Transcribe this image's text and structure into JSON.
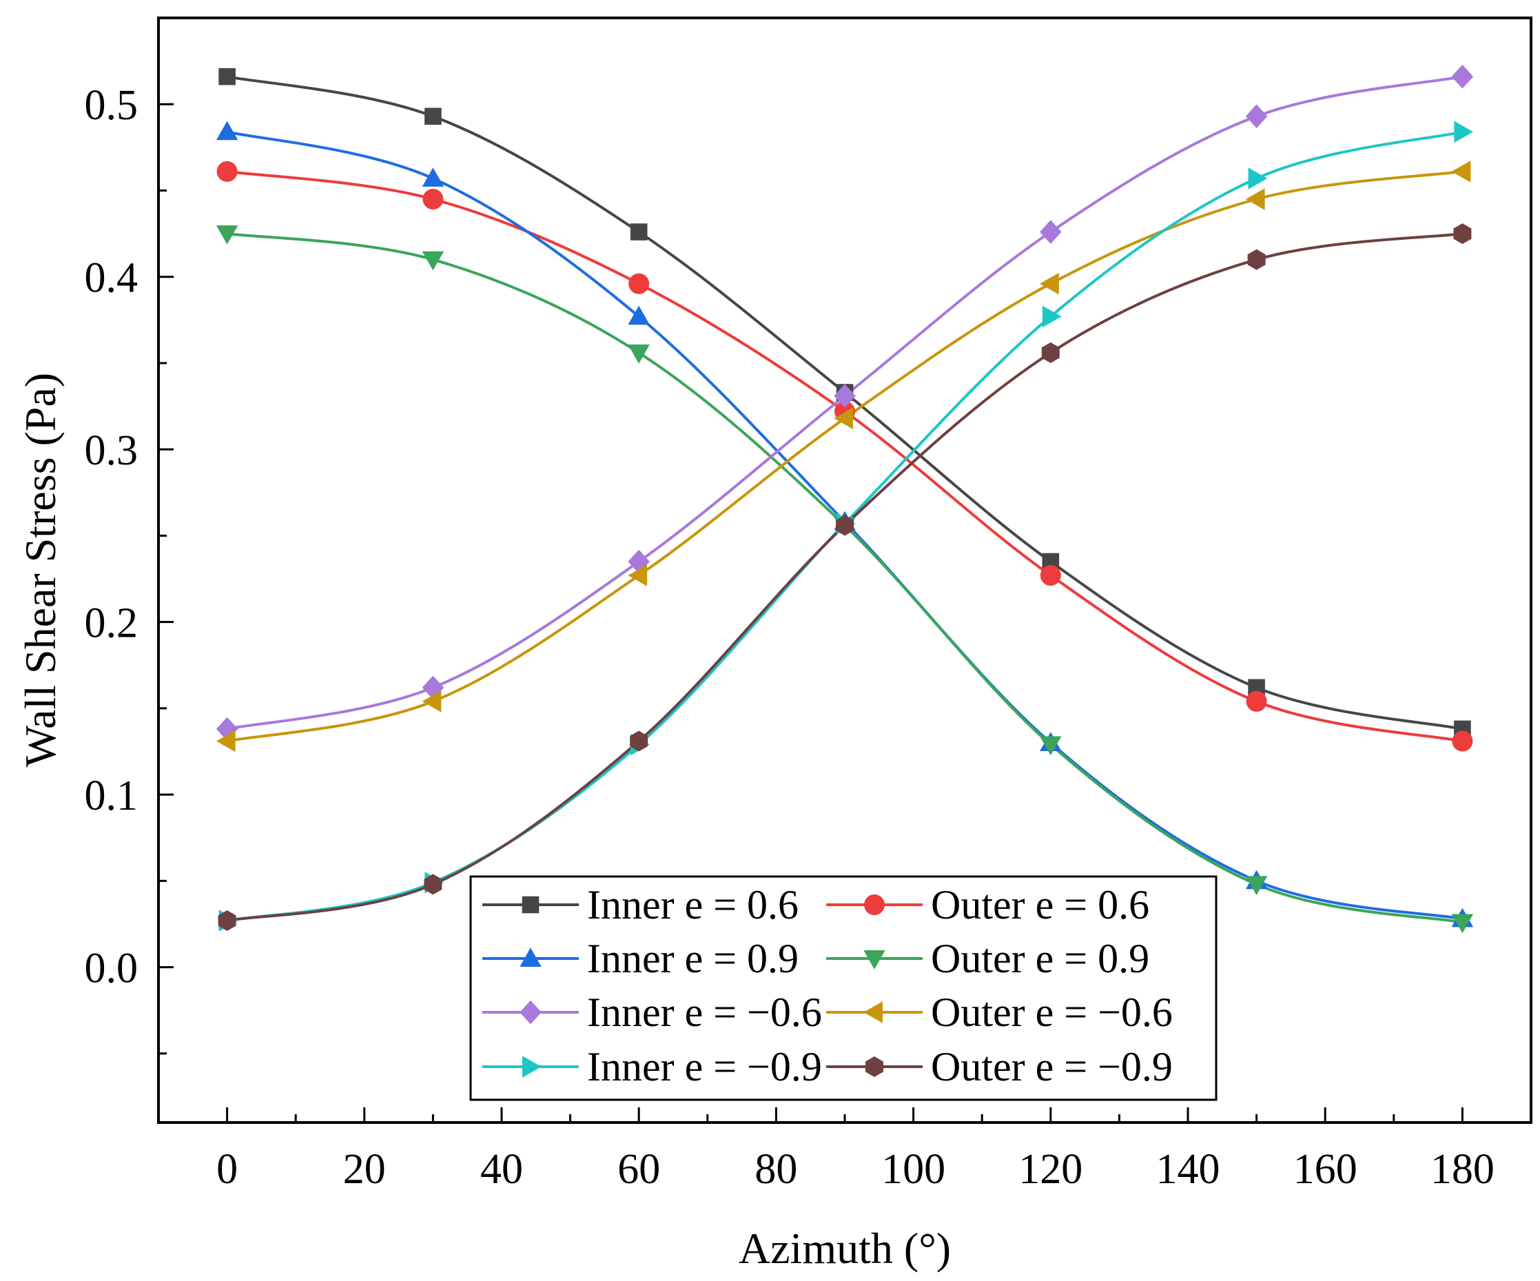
{
  "chart_data": {
    "type": "line",
    "title": "",
    "xlabel": "Azimuth (°)",
    "ylabel": "Wall Shear Stress (Pa)",
    "xlim": [
      -10,
      190
    ],
    "ylim": [
      -0.09,
      0.55
    ],
    "xticks": [
      0,
      20,
      40,
      60,
      80,
      100,
      120,
      140,
      160,
      180
    ],
    "xtick_labels": [
      "0",
      "20",
      "40",
      "60",
      "80",
      "100",
      "120",
      "140",
      "160",
      "180"
    ],
    "yticks": [
      0.0,
      0.1,
      0.2,
      0.3,
      0.4,
      0.5
    ],
    "ytick_labels": [
      "0.0",
      "0.1",
      "0.2",
      "0.3",
      "0.4",
      "0.5"
    ],
    "x": [
      0,
      30,
      60,
      90,
      120,
      150,
      180
    ],
    "grid": false,
    "legend_position": "bottom-center",
    "series": [
      {
        "name": "Inner e = 0.6",
        "color": "#464646",
        "marker": "square",
        "values": [
          0.516,
          0.493,
          0.426,
          0.333,
          0.235,
          0.162,
          0.138
        ]
      },
      {
        "name": "Outer e = 0.6",
        "color": "#ee3b3b",
        "marker": "circle",
        "values": [
          0.461,
          0.445,
          0.396,
          0.322,
          0.227,
          0.154,
          0.131
        ]
      },
      {
        "name": "Inner e = 0.9",
        "color": "#1e6de0",
        "marker": "triangle-up",
        "values": [
          0.484,
          0.457,
          0.377,
          0.258,
          0.13,
          0.05,
          0.028
        ]
      },
      {
        "name": "Outer e = 0.9",
        "color": "#3aa55b",
        "marker": "triangle-down",
        "values": [
          0.425,
          0.41,
          0.356,
          0.256,
          0.129,
          0.048,
          0.026
        ]
      },
      {
        "name": "Inner e = −0.6",
        "color": "#a878dc",
        "marker": "diamond",
        "values": [
          0.138,
          0.162,
          0.235,
          0.331,
          0.426,
          0.493,
          0.516
        ]
      },
      {
        "name": "Outer e = −0.6",
        "color": "#c8960a",
        "marker": "triangle-left",
        "values": [
          0.131,
          0.154,
          0.227,
          0.318,
          0.396,
          0.445,
          0.461
        ]
      },
      {
        "name": "Inner e = −0.9",
        "color": "#1cc6c6",
        "marker": "triangle-right",
        "values": [
          0.027,
          0.049,
          0.129,
          0.257,
          0.377,
          0.457,
          0.484
        ]
      },
      {
        "name": "Outer e = −0.9",
        "color": "#6e4040",
        "marker": "hexagon",
        "values": [
          0.027,
          0.048,
          0.131,
          0.256,
          0.356,
          0.41,
          0.425
        ]
      }
    ]
  }
}
